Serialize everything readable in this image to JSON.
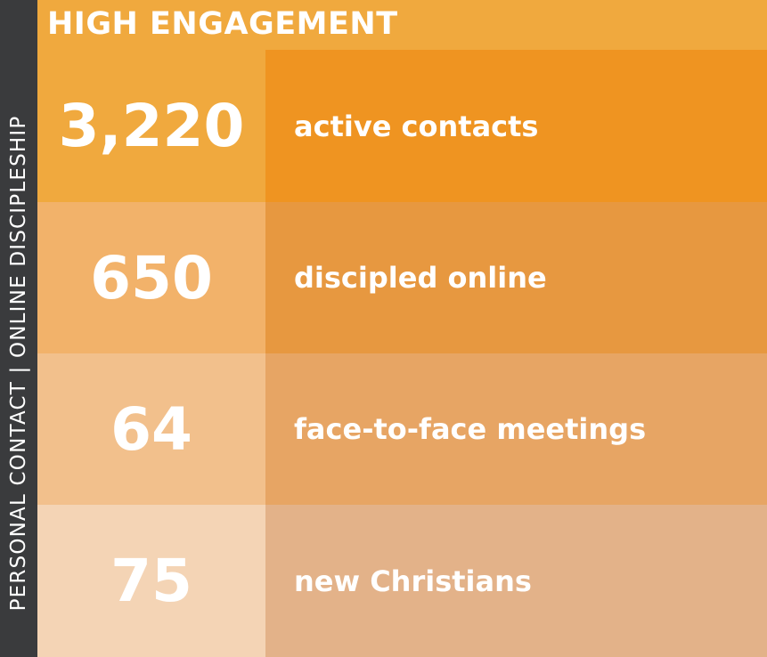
{
  "side_label": "PERSONAL CONTACT | ONLINE DISCIPLESHIP",
  "header": {
    "title": "HIGH ENGAGEMENT"
  },
  "colors": {
    "side_band": "#3a3b3d",
    "header": "#f0a93e",
    "text": "#ffffff"
  },
  "rows": [
    {
      "value": "3,220",
      "label": "active contacts",
      "value_bg": "#f0a93e",
      "label_bg": "#ef9421"
    },
    {
      "value": "650",
      "label": "discipled online",
      "value_bg": "#f2b26a",
      "label_bg": "#e79840"
    },
    {
      "value": "64",
      "label": "face-to-face meetings",
      "value_bg": "#f2c08c",
      "label_bg": "#e7a564"
    },
    {
      "value": "75",
      "label": "new Christians",
      "value_bg": "#f4d4b5",
      "label_bg": "#e3b289"
    }
  ]
}
